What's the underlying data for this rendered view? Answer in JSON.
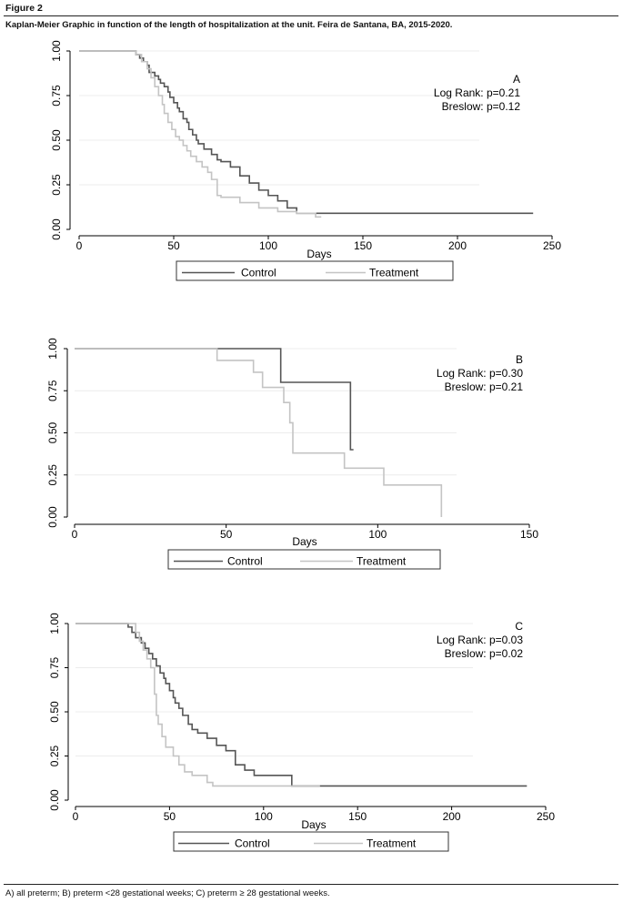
{
  "figure_label": "Figure 2",
  "caption": "Kaplan-Meier Graphic in function of the length of hospitalization at the unit. Feira de Santana, BA, 2015-2020.",
  "footnote": "A) all preterm; B) preterm <28 gestational weeks; C) preterm ≥ 28 gestational weeks.",
  "colors": {
    "control": "#555555",
    "treatment": "#c4c4c4",
    "axis": "#000000",
    "grid": "#ececec"
  },
  "chart_data": [
    {
      "type": "line",
      "panel_label": "A",
      "stat1": "Log Rank: p=0.21",
      "stat2": "Breslow: p=0.12",
      "xlabel": "Days",
      "xlim": [
        0,
        250
      ],
      "ylim": [
        0,
        1
      ],
      "xticks": [
        "0",
        "50",
        "100",
        "150",
        "200",
        "250"
      ],
      "yticks": [
        "0.00",
        "0.25",
        "0.50",
        "0.75",
        "1.00"
      ],
      "grid": true,
      "legend_placement": "bottom",
      "series": [
        {
          "name": "Control",
          "x": [
            0,
            30,
            32,
            34,
            36,
            37,
            40,
            42,
            43,
            45,
            47,
            48,
            50,
            52,
            53,
            55,
            57,
            58,
            60,
            62,
            63,
            66,
            70,
            73,
            75,
            80,
            85,
            90,
            95,
            100,
            105,
            110,
            115,
            240
          ],
          "y": [
            1.0,
            0.98,
            0.96,
            0.94,
            0.92,
            0.88,
            0.86,
            0.84,
            0.82,
            0.8,
            0.77,
            0.74,
            0.71,
            0.68,
            0.66,
            0.62,
            0.6,
            0.56,
            0.53,
            0.5,
            0.48,
            0.45,
            0.42,
            0.39,
            0.38,
            0.35,
            0.3,
            0.26,
            0.22,
            0.19,
            0.16,
            0.12,
            0.09,
            0.09
          ]
        },
        {
          "name": "Treatment",
          "x": [
            0,
            30,
            33,
            36,
            38,
            40,
            42,
            44,
            45,
            47,
            49,
            51,
            53,
            55,
            57,
            59,
            62,
            65,
            68,
            70,
            73,
            75,
            85,
            95,
            105,
            115,
            125,
            128
          ],
          "y": [
            1.0,
            0.98,
            0.94,
            0.9,
            0.85,
            0.8,
            0.75,
            0.7,
            0.65,
            0.6,
            0.56,
            0.52,
            0.5,
            0.47,
            0.44,
            0.41,
            0.38,
            0.35,
            0.32,
            0.28,
            0.19,
            0.18,
            0.15,
            0.12,
            0.1,
            0.09,
            0.07,
            0.07
          ]
        }
      ]
    },
    {
      "type": "line",
      "panel_label": "B",
      "stat1": "Log Rank: p=0.30",
      "stat2": "Breslow: p=0.21",
      "xlabel": "Days",
      "xlim": [
        0,
        150
      ],
      "ylim": [
        0,
        1
      ],
      "xticks": [
        "0",
        "50",
        "100",
        "150"
      ],
      "yticks": [
        "0.00",
        "0.25",
        "0.50",
        "0.75",
        "1.00"
      ],
      "grid": true,
      "legend_placement": "bottom",
      "series": [
        {
          "name": "Control",
          "x": [
            0,
            68,
            91,
            92
          ],
          "y": [
            1.0,
            0.8,
            0.4,
            0.4
          ]
        },
        {
          "name": "Treatment",
          "x": [
            0,
            47,
            59,
            62,
            69,
            71,
            72,
            89,
            102,
            121
          ],
          "y": [
            1.0,
            0.93,
            0.86,
            0.77,
            0.68,
            0.56,
            0.38,
            0.29,
            0.19,
            0.0
          ]
        }
      ]
    },
    {
      "type": "line",
      "panel_label": "C",
      "stat1": "Log Rank: p=0.03",
      "stat2": "Breslow: p=0.02",
      "xlabel": "Days",
      "xlim": [
        0,
        250
      ],
      "ylim": [
        0,
        1
      ],
      "xticks": [
        "0",
        "50",
        "100",
        "150",
        "200",
        "250"
      ],
      "yticks": [
        "0.00",
        "0.25",
        "0.50",
        "0.75",
        "1.00"
      ],
      "grid": true,
      "legend_placement": "bottom",
      "series": [
        {
          "name": "Control",
          "x": [
            0,
            28,
            30,
            32,
            35,
            37,
            39,
            41,
            43,
            45,
            47,
            48,
            50,
            52,
            53,
            55,
            57,
            60,
            62,
            65,
            70,
            75,
            80,
            85,
            90,
            95,
            115,
            240
          ],
          "y": [
            1.0,
            0.98,
            0.95,
            0.92,
            0.89,
            0.86,
            0.83,
            0.8,
            0.76,
            0.72,
            0.69,
            0.66,
            0.62,
            0.58,
            0.55,
            0.52,
            0.48,
            0.43,
            0.4,
            0.38,
            0.35,
            0.31,
            0.28,
            0.2,
            0.17,
            0.14,
            0.08,
            0.08
          ]
        },
        {
          "name": "Treatment",
          "x": [
            0,
            32,
            34,
            36,
            38,
            40,
            42,
            43,
            44,
            46,
            48,
            52,
            55,
            58,
            62,
            70,
            73,
            130
          ],
          "y": [
            1.0,
            0.95,
            0.9,
            0.85,
            0.8,
            0.75,
            0.6,
            0.48,
            0.43,
            0.36,
            0.3,
            0.25,
            0.2,
            0.16,
            0.14,
            0.1,
            0.08,
            0.08
          ]
        }
      ]
    }
  ]
}
